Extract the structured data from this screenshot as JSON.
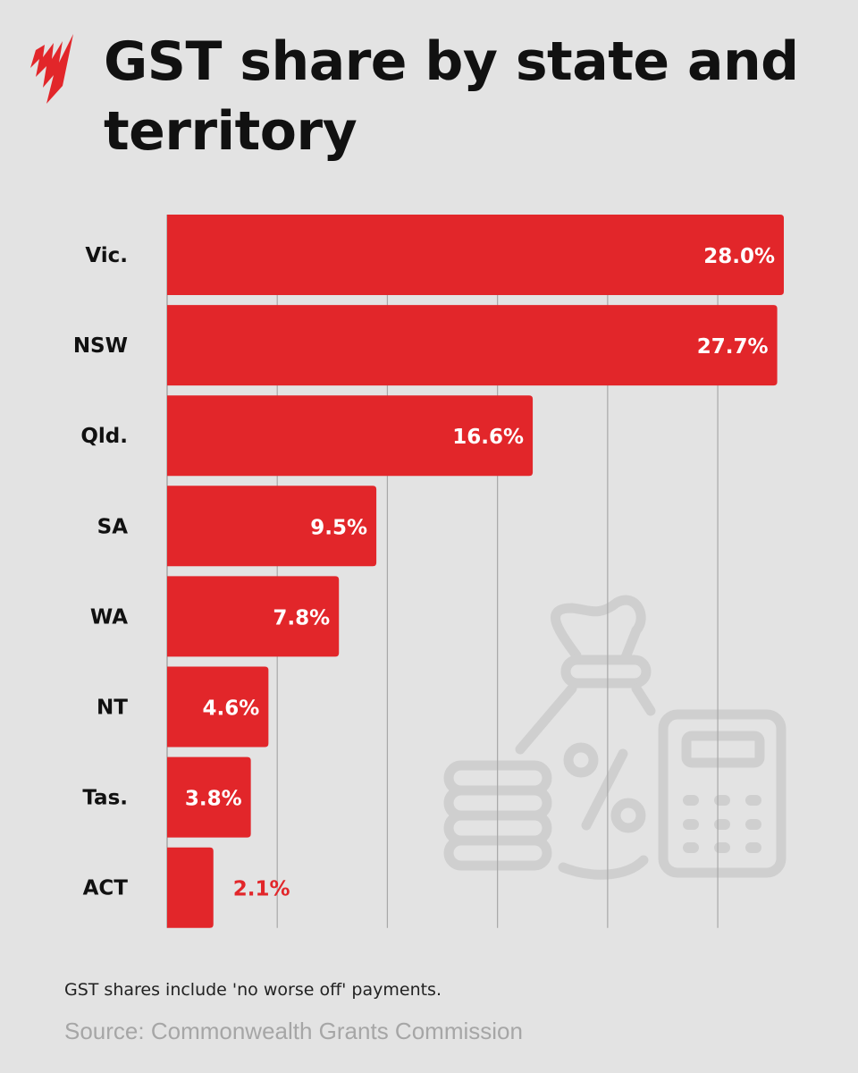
{
  "title": "GST share by state and territory",
  "note": "GST shares include 'no worse off' payments.",
  "source": "Source: Commonwealth Grants Commission",
  "colors": {
    "bar": "#e2262a",
    "background": "#e3e3e3",
    "grid": "#a8a8a8",
    "watermark": "#cfcfcf"
  },
  "logo": "SBS",
  "watermark_icons": [
    "coin-stack-icon",
    "money-bag-percent-icon",
    "calculator-icon"
  ],
  "chart_data": {
    "type": "bar",
    "orientation": "horizontal",
    "categories": [
      "Vic.",
      "NSW",
      "Qld.",
      "SA",
      "WA",
      "NT",
      "Tas.",
      "ACT"
    ],
    "values": [
      28.0,
      27.7,
      16.6,
      9.5,
      7.8,
      4.6,
      3.8,
      2.1
    ],
    "data_labels": [
      "28.0%",
      "27.7%",
      "16.6%",
      "9.5%",
      "7.8%",
      "4.6%",
      "3.8%",
      "2.1%"
    ],
    "unit": "%",
    "xlim": [
      0,
      28
    ],
    "gridlines": [
      5,
      10,
      15,
      20,
      25
    ],
    "grid": true,
    "legend": "none"
  }
}
